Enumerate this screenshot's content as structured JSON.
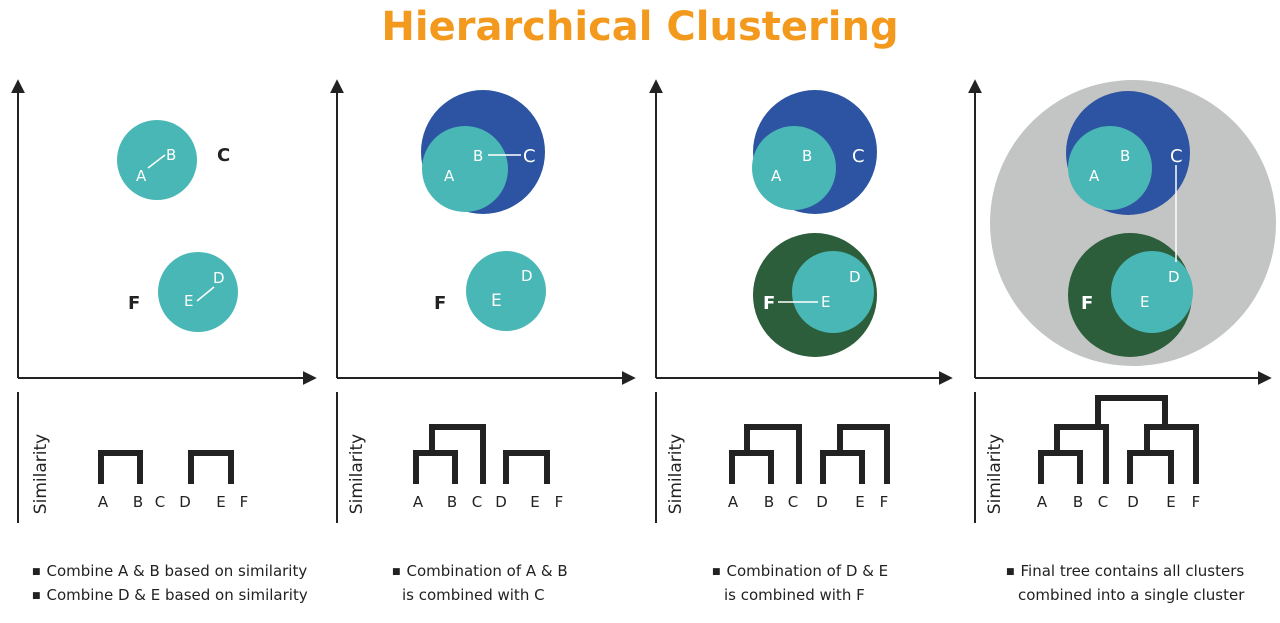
{
  "title": "Hierarchical Clustering",
  "axis_label": "Similarity",
  "colors": {
    "title": "#f39a1e",
    "teal": "#49b7b5",
    "blue": "#2d54a2",
    "green": "#2c5e3b",
    "gray": "#c3c5c4",
    "ink": "#222222"
  },
  "letters": [
    "A",
    "B",
    "C",
    "D",
    "E",
    "F"
  ],
  "panels": [
    {
      "points": {
        "A": "A",
        "B": "B",
        "C": "C",
        "D": "D",
        "E": "E",
        "F": "F"
      },
      "caption_line1": "Combine A & B based on similarity",
      "caption_line2": "Combine D & E based on similarity"
    },
    {
      "points": {
        "A": "A",
        "B": "B",
        "C": "C",
        "D": "D",
        "E": "E",
        "F": "F"
      },
      "caption_line1": "Combination of A & B",
      "caption_line2": "is combined with C"
    },
    {
      "points": {
        "A": "A",
        "B": "B",
        "C": "C",
        "D": "D",
        "E": "E",
        "F": "F"
      },
      "caption_line1": "Combination of D & E",
      "caption_line2": "is combined with F"
    },
    {
      "points": {
        "A": "A",
        "B": "B",
        "C": "C",
        "D": "D",
        "E": "E",
        "F": "F"
      },
      "caption_line1": "Final tree contains all clusters",
      "caption_line2": "combined into a single cluster"
    }
  ]
}
